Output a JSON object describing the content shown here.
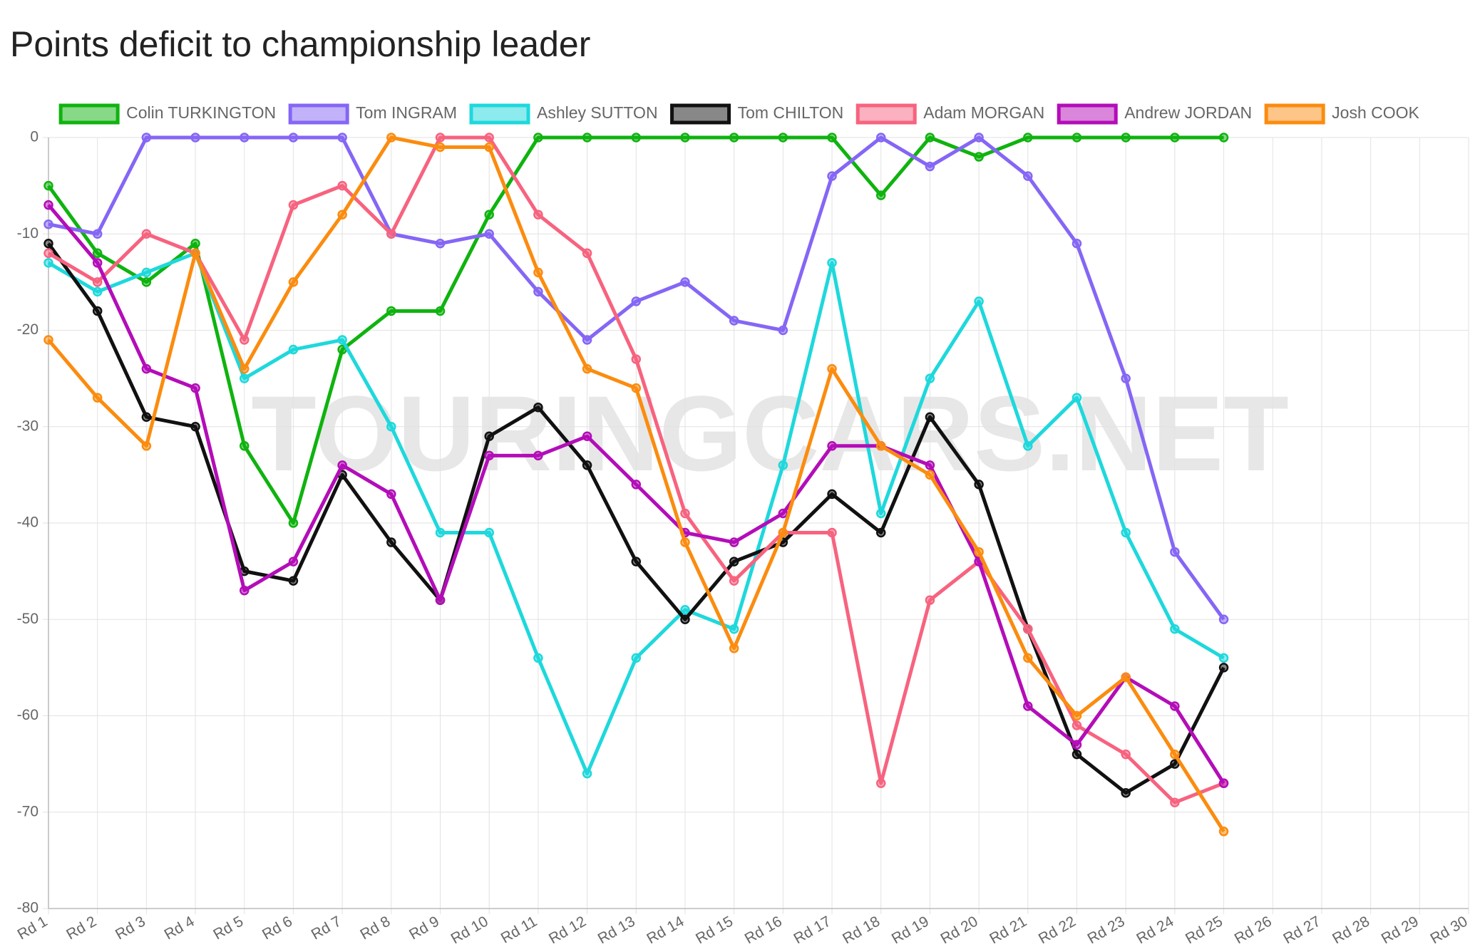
{
  "chart_data": {
    "type": "line",
    "title": "Points deficit to championship leader",
    "watermark": "TOURINGCARS.NET",
    "categories": [
      "Rd 1",
      "Rd 2",
      "Rd 3",
      "Rd 4",
      "Rd 5",
      "Rd 6",
      "Rd 7",
      "Rd 8",
      "Rd 9",
      "Rd 10",
      "Rd 11",
      "Rd 12",
      "Rd 13",
      "Rd 14",
      "Rd 15",
      "Rd 16",
      "Rd 17",
      "Rd 18",
      "Rd 19",
      "Rd 20",
      "Rd 21",
      "Rd 22",
      "Rd 23",
      "Rd 24",
      "Rd 25",
      "Rd 26",
      "Rd 27",
      "Rd 28",
      "Rd 29",
      "Rd 30"
    ],
    "series": [
      {
        "name": "Colin TURKINGTON",
        "color": "#0fb30f",
        "values": [
          -5,
          -12,
          -15,
          -11,
          -32,
          -40,
          -22,
          -18,
          -18,
          -8,
          0,
          0,
          0,
          0,
          0,
          0,
          0,
          -6,
          0,
          -2,
          0,
          0,
          0,
          0,
          0,
          null,
          null,
          null,
          null,
          null
        ]
      },
      {
        "name": "Tom INGRAM",
        "color": "#8566f5",
        "values": [
          -9,
          -10,
          0,
          0,
          0,
          0,
          0,
          -10,
          -11,
          -10,
          -16,
          -21,
          -17,
          -15,
          -19,
          -20,
          -4,
          0,
          -3,
          0,
          -4,
          -11,
          -25,
          -43,
          -50,
          null,
          null,
          null,
          null,
          null
        ]
      },
      {
        "name": "Ashley SUTTON",
        "color": "#1ed8dc",
        "values": [
          -13,
          -16,
          -14,
          -12,
          -25,
          -22,
          -21,
          -30,
          -41,
          -41,
          -54,
          -66,
          -54,
          -49,
          -51,
          -34,
          -13,
          -39,
          -25,
          -17,
          -32,
          -27,
          -41,
          -51,
          -54,
          null,
          null,
          null,
          null,
          null
        ]
      },
      {
        "name": "Tom CHILTON",
        "color": "#111111",
        "values": [
          -11,
          -18,
          -29,
          -30,
          -45,
          -46,
          -35,
          -42,
          -48,
          -31,
          -28,
          -34,
          -44,
          -50,
          -44,
          -42,
          -37,
          -41,
          -29,
          -36,
          -51,
          -64,
          -68,
          -65,
          -55,
          null,
          null,
          null,
          null,
          null
        ]
      },
      {
        "name": "Adam MORGAN",
        "color": "#f7637f",
        "values": [
          -12,
          -15,
          -10,
          -12,
          -21,
          -7,
          -5,
          -10,
          0,
          0,
          -8,
          -12,
          -23,
          -39,
          -46,
          -41,
          -41,
          -67,
          -48,
          -44,
          -51,
          -61,
          -64,
          -69,
          -67,
          null,
          null,
          null,
          null,
          null
        ]
      },
      {
        "name": "Andrew JORDAN",
        "color": "#b30db8",
        "values": [
          -7,
          -13,
          -24,
          -26,
          -47,
          -44,
          -34,
          -37,
          -48,
          -33,
          -33,
          -31,
          -36,
          -41,
          -42,
          -39,
          -32,
          -32,
          -34,
          -44,
          -59,
          -63,
          -56,
          -59,
          -67,
          null,
          null,
          null,
          null,
          null
        ]
      },
      {
        "name": "Josh COOK",
        "color": "#fb8c0f",
        "values": [
          -21,
          -27,
          -32,
          -12,
          -24,
          -15,
          -8,
          0,
          -1,
          -1,
          -14,
          -24,
          -26,
          -42,
          -53,
          -41,
          -24,
          -32,
          -35,
          -43,
          -54,
          -60,
          -56,
          -64,
          -72,
          null,
          null,
          null,
          null,
          null
        ]
      }
    ],
    "ylim": [
      -80,
      0
    ],
    "yticks": [
      0,
      -10,
      -20,
      -30,
      -40,
      -50,
      -60,
      -70,
      -80
    ],
    "grid": true
  }
}
